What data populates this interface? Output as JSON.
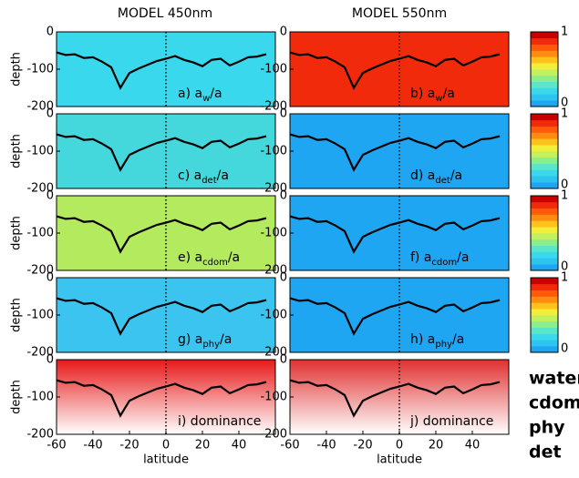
{
  "figure": {
    "column_titles": [
      "MODEL 450nm",
      "MODEL 550nm"
    ],
    "legend": [
      {
        "name": "water",
        "color": "#ff1a1a"
      },
      {
        "name": "cdom",
        "color": "#ffc21a"
      },
      {
        "name": "phy",
        "color": "#22b04a"
      },
      {
        "name": "det",
        "color": "#1eb4f0"
      }
    ]
  },
  "chart_data": [
    {
      "type": "heatmap",
      "label": "a) a",
      "label_sub": "w",
      "label_tail": "/a",
      "ylabel": "depth",
      "color": "#3ad8ec",
      "fade": false,
      "xlim": [
        -60,
        60
      ],
      "ylim": [
        -200,
        0
      ],
      "yticks": [
        -200,
        -100,
        0
      ],
      "x": [
        -60,
        -55,
        -50,
        -45,
        -40,
        -35,
        -30,
        -25,
        -20,
        -15,
        -10,
        -5,
        0,
        5,
        10,
        15,
        20,
        25,
        30,
        35,
        40,
        45,
        50,
        55
      ],
      "values": [
        -55,
        -62,
        -60,
        -70,
        -68,
        -80,
        -95,
        -150,
        -110,
        -98,
        -88,
        -78,
        -72,
        -65,
        -75,
        -82,
        -92,
        -75,
        -72,
        -90,
        -80,
        -68,
        -66,
        -60
      ]
    },
    {
      "type": "heatmap",
      "label": "b) a",
      "label_sub": "w",
      "label_tail": "/a",
      "color": "#f02a0a",
      "fade": false,
      "xlim": [
        -60,
        60
      ],
      "ylim": [
        -200,
        0
      ],
      "yticks": [
        -200,
        -100,
        0
      ],
      "x": [
        -60,
        -55,
        -50,
        -45,
        -40,
        -35,
        -30,
        -25,
        -20,
        -15,
        -10,
        -5,
        0,
        5,
        10,
        15,
        20,
        25,
        30,
        35,
        40,
        45,
        50,
        55
      ],
      "values": [
        -55,
        -62,
        -60,
        -70,
        -68,
        -80,
        -95,
        -150,
        -110,
        -98,
        -88,
        -78,
        -72,
        -65,
        -75,
        -82,
        -92,
        -75,
        -72,
        -90,
        -80,
        -68,
        -66,
        -60
      ]
    },
    {
      "type": "heatmap",
      "label": "c) a",
      "label_sub": "det",
      "label_tail": "/a",
      "ylabel": "depth",
      "color": "#44d8dc",
      "fade": false,
      "xlim": [
        -60,
        60
      ],
      "ylim": [
        -200,
        0
      ],
      "yticks": [
        -200,
        -100,
        0
      ],
      "x": [
        -60,
        -55,
        -50,
        -45,
        -40,
        -35,
        -30,
        -25,
        -20,
        -15,
        -10,
        -5,
        0,
        5,
        10,
        15,
        20,
        25,
        30,
        35,
        40,
        45,
        50,
        55
      ],
      "values": [
        -55,
        -62,
        -60,
        -70,
        -68,
        -80,
        -95,
        -150,
        -110,
        -98,
        -88,
        -78,
        -72,
        -65,
        -75,
        -82,
        -92,
        -75,
        -72,
        -90,
        -80,
        -68,
        -66,
        -60
      ]
    },
    {
      "type": "heatmap",
      "label": "d) a",
      "label_sub": "det",
      "label_tail": "/a",
      "color": "#1fa6f2",
      "fade": false,
      "xlim": [
        -60,
        60
      ],
      "ylim": [
        -200,
        0
      ],
      "yticks": [
        -200,
        -100,
        0
      ],
      "x": [
        -60,
        -55,
        -50,
        -45,
        -40,
        -35,
        -30,
        -25,
        -20,
        -15,
        -10,
        -5,
        0,
        5,
        10,
        15,
        20,
        25,
        30,
        35,
        40,
        45,
        50,
        55
      ],
      "values": [
        -55,
        -62,
        -60,
        -70,
        -68,
        -80,
        -95,
        -150,
        -110,
        -98,
        -88,
        -78,
        -72,
        -65,
        -75,
        -82,
        -92,
        -75,
        -72,
        -90,
        -80,
        -68,
        -66,
        -60
      ]
    },
    {
      "type": "heatmap",
      "label": "e) a",
      "label_sub": "cdom",
      "label_tail": "/a",
      "ylabel": "depth",
      "color": "#b4ea5e",
      "fade": false,
      "xlim": [
        -60,
        60
      ],
      "ylim": [
        -200,
        0
      ],
      "yticks": [
        -200,
        -100,
        0
      ],
      "x": [
        -60,
        -55,
        -50,
        -45,
        -40,
        -35,
        -30,
        -25,
        -20,
        -15,
        -10,
        -5,
        0,
        5,
        10,
        15,
        20,
        25,
        30,
        35,
        40,
        45,
        50,
        55
      ],
      "values": [
        -55,
        -62,
        -60,
        -70,
        -68,
        -80,
        -95,
        -150,
        -110,
        -98,
        -88,
        -78,
        -72,
        -65,
        -75,
        -82,
        -92,
        -75,
        -72,
        -90,
        -80,
        -68,
        -66,
        -60
      ]
    },
    {
      "type": "heatmap",
      "label": "f) a",
      "label_sub": "cdom",
      "label_tail": "/a",
      "color": "#1fa6f2",
      "fade": false,
      "xlim": [
        -60,
        60
      ],
      "ylim": [
        -200,
        0
      ],
      "yticks": [
        -200,
        -100,
        0
      ],
      "x": [
        -60,
        -55,
        -50,
        -45,
        -40,
        -35,
        -30,
        -25,
        -20,
        -15,
        -10,
        -5,
        0,
        5,
        10,
        15,
        20,
        25,
        30,
        35,
        40,
        45,
        50,
        55
      ],
      "values": [
        -55,
        -62,
        -60,
        -70,
        -68,
        -80,
        -95,
        -150,
        -110,
        -98,
        -88,
        -78,
        -72,
        -65,
        -75,
        -82,
        -92,
        -75,
        -72,
        -90,
        -80,
        -68,
        -66,
        -60
      ]
    },
    {
      "type": "heatmap",
      "label": "g) a",
      "label_sub": "phy",
      "label_tail": "/a",
      "ylabel": "depth",
      "color": "#3cc4f0",
      "fade": false,
      "xlim": [
        -60,
        60
      ],
      "ylim": [
        -200,
        0
      ],
      "yticks": [
        -200,
        -100,
        0
      ],
      "x": [
        -60,
        -55,
        -50,
        -45,
        -40,
        -35,
        -30,
        -25,
        -20,
        -15,
        -10,
        -5,
        0,
        5,
        10,
        15,
        20,
        25,
        30,
        35,
        40,
        45,
        50,
        55
      ],
      "values": [
        -55,
        -62,
        -60,
        -70,
        -68,
        -80,
        -95,
        -150,
        -110,
        -98,
        -88,
        -78,
        -72,
        -65,
        -75,
        -82,
        -92,
        -75,
        -72,
        -90,
        -80,
        -68,
        -66,
        -60
      ]
    },
    {
      "type": "heatmap",
      "label": "h) a",
      "label_sub": "phy",
      "label_tail": "/a",
      "color": "#1fa6f2",
      "fade": false,
      "xlim": [
        -60,
        60
      ],
      "ylim": [
        -200,
        0
      ],
      "yticks": [
        -200,
        -100,
        0
      ],
      "x": [
        -60,
        -55,
        -50,
        -45,
        -40,
        -35,
        -30,
        -25,
        -20,
        -15,
        -10,
        -5,
        0,
        5,
        10,
        15,
        20,
        25,
        30,
        35,
        40,
        45,
        50,
        55
      ],
      "values": [
        -55,
        -62,
        -60,
        -70,
        -68,
        -80,
        -95,
        -150,
        -110,
        -98,
        -88,
        -78,
        -72,
        -65,
        -75,
        -82,
        -92,
        -75,
        -72,
        -90,
        -80,
        -68,
        -66,
        -60
      ]
    },
    {
      "type": "heatmap",
      "label": "i) dominance",
      "ylabel": "depth",
      "xlabel": "latitude",
      "color": "#e81818",
      "fade": true,
      "xlim": [
        -60,
        60
      ],
      "ylim": [
        -200,
        0
      ],
      "yticks": [
        -200,
        -100,
        0
      ],
      "xticks": [
        -60,
        -40,
        -20,
        0,
        20,
        40
      ],
      "x": [
        -60,
        -55,
        -50,
        -45,
        -40,
        -35,
        -30,
        -25,
        -20,
        -15,
        -10,
        -5,
        0,
        5,
        10,
        15,
        20,
        25,
        30,
        35,
        40,
        45,
        50,
        55
      ],
      "values": [
        -55,
        -62,
        -60,
        -70,
        -68,
        -80,
        -95,
        -150,
        -110,
        -98,
        -88,
        -78,
        -72,
        -65,
        -75,
        -82,
        -92,
        -75,
        -72,
        -90,
        -80,
        -68,
        -66,
        -60
      ]
    },
    {
      "type": "heatmap",
      "label": "j) dominance",
      "xlabel": "latitude",
      "color": "#e03030",
      "fade": true,
      "xlim": [
        -60,
        60
      ],
      "ylim": [
        -200,
        0
      ],
      "yticks": [
        -200,
        -100,
        0
      ],
      "xticks": [
        -60,
        -40,
        -20,
        0,
        20,
        40
      ],
      "x": [
        -60,
        -55,
        -50,
        -45,
        -40,
        -35,
        -30,
        -25,
        -20,
        -15,
        -10,
        -5,
        0,
        5,
        10,
        15,
        20,
        25,
        30,
        35,
        40,
        45,
        50,
        55
      ],
      "values": [
        -55,
        -62,
        -60,
        -70,
        -68,
        -80,
        -95,
        -150,
        -110,
        -98,
        -88,
        -78,
        -72,
        -65,
        -75,
        -82,
        -92,
        -75,
        -72,
        -90,
        -80,
        -68,
        -66,
        -60
      ]
    },
    {
      "type": "colorbar",
      "ylim": [
        0,
        1
      ],
      "yticks": [
        0,
        1
      ],
      "colors": [
        "#1fa6f2",
        "#2ec4f0",
        "#3ad8ec",
        "#5ae6c8",
        "#8aee8a",
        "#c4f060",
        "#f2ee3a",
        "#ffc21a",
        "#ff8c10",
        "#ff5a0a",
        "#f02a0a",
        "#c80000"
      ]
    },
    {
      "type": "colorbar",
      "ylim": [
        0,
        1
      ],
      "yticks": [
        0,
        1
      ],
      "colors": [
        "#1fa6f2",
        "#2ec4f0",
        "#3ad8ec",
        "#5ae6c8",
        "#8aee8a",
        "#c4f060",
        "#f2ee3a",
        "#ffc21a",
        "#ff8c10",
        "#ff5a0a",
        "#f02a0a",
        "#c80000"
      ]
    },
    {
      "type": "colorbar",
      "ylim": [
        0,
        1
      ],
      "yticks": [
        0,
        1
      ],
      "colors": [
        "#1fa6f2",
        "#2ec4f0",
        "#3ad8ec",
        "#5ae6c8",
        "#8aee8a",
        "#c4f060",
        "#f2ee3a",
        "#ffc21a",
        "#ff8c10",
        "#ff5a0a",
        "#f02a0a",
        "#c80000"
      ]
    },
    {
      "type": "colorbar",
      "ylim": [
        0,
        1
      ],
      "yticks": [
        0,
        1
      ],
      "colors": [
        "#1fa6f2",
        "#2ec4f0",
        "#3ad8ec",
        "#5ae6c8",
        "#8aee8a",
        "#c4f060",
        "#f2ee3a",
        "#ffc21a",
        "#ff8c10",
        "#ff5a0a",
        "#f02a0a",
        "#c80000"
      ]
    }
  ]
}
